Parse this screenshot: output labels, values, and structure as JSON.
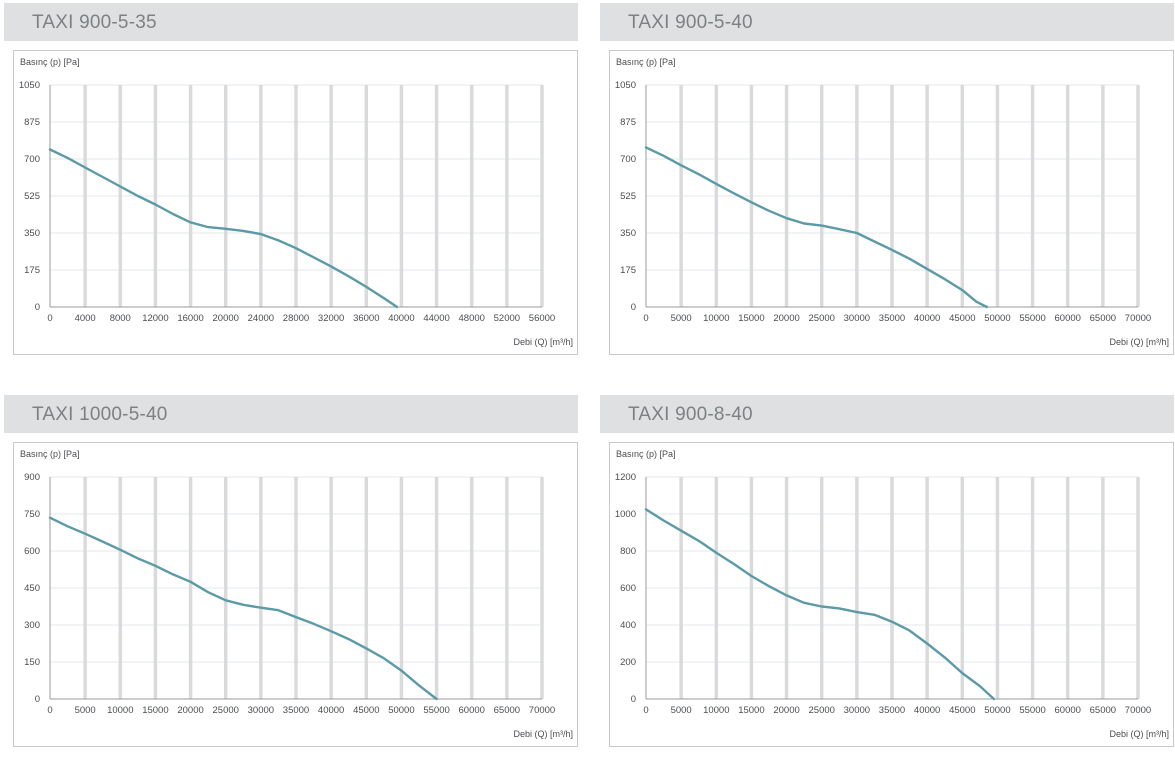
{
  "chart_data": [
    {
      "type": "line",
      "title": "TAXI 900-5-35",
      "ylabel": "Basınç (p) [Pa]",
      "xlabel": "Debi (Q) [m³/h]",
      "ylim": [
        0,
        1050
      ],
      "xlim": [
        0,
        56000
      ],
      "yticks": [
        0,
        175,
        350,
        525,
        700,
        875,
        1050
      ],
      "xticks": [
        0,
        4000,
        8000,
        12000,
        16000,
        20000,
        24000,
        28000,
        32000,
        36000,
        40000,
        44000,
        48000,
        52000,
        56000
      ],
      "grid": true,
      "line_color": "#5b9aa6",
      "series": [
        {
          "x": [
            0,
            2000,
            4000,
            6000,
            8000,
            10000,
            12000,
            14000,
            16000,
            18000,
            20000,
            22000,
            24000,
            26000,
            28000,
            30000,
            32000,
            34000,
            36000,
            38000,
            39500
          ],
          "y": [
            745,
            705,
            660,
            615,
            570,
            525,
            485,
            440,
            400,
            378,
            370,
            360,
            345,
            315,
            278,
            235,
            192,
            145,
            95,
            42,
            0
          ]
        }
      ]
    },
    {
      "type": "line",
      "title": "TAXI 900-5-40",
      "ylabel": "Basınç (p) [Pa]",
      "xlabel": "Debi (Q) [m³/h]",
      "ylim": [
        0,
        1050
      ],
      "xlim": [
        0,
        70000
      ],
      "yticks": [
        0,
        175,
        350,
        525,
        700,
        875,
        1050
      ],
      "xticks": [
        0,
        5000,
        10000,
        15000,
        20000,
        25000,
        30000,
        35000,
        40000,
        45000,
        50000,
        55000,
        60000,
        65000,
        70000
      ],
      "grid": true,
      "line_color": "#5b9aa6",
      "series": [
        {
          "x": [
            0,
            2500,
            5000,
            7500,
            10000,
            12500,
            15000,
            17500,
            20000,
            22500,
            25000,
            27500,
            30000,
            32500,
            35000,
            37500,
            40000,
            42500,
            45000,
            47000,
            48500
          ],
          "y": [
            755,
            715,
            670,
            628,
            582,
            538,
            495,
            455,
            420,
            395,
            385,
            368,
            350,
            310,
            270,
            228,
            180,
            132,
            80,
            25,
            0
          ]
        }
      ]
    },
    {
      "type": "line",
      "title": "TAXI 1000-5-40",
      "ylabel": "Basınç (p) [Pa]",
      "xlabel": "Debi (Q) [m³/h]",
      "ylim": [
        0,
        900
      ],
      "xlim": [
        0,
        70000
      ],
      "yticks": [
        0,
        150,
        300,
        450,
        600,
        750,
        900
      ],
      "xticks": [
        0,
        5000,
        10000,
        15000,
        20000,
        25000,
        30000,
        35000,
        40000,
        45000,
        50000,
        55000,
        60000,
        65000,
        70000
      ],
      "grid": true,
      "line_color": "#5b9aa6",
      "series": [
        {
          "x": [
            0,
            2500,
            5000,
            7500,
            10000,
            12500,
            15000,
            17500,
            20000,
            22500,
            25000,
            27500,
            30000,
            32500,
            35000,
            37500,
            40000,
            42500,
            45000,
            47500,
            50000,
            52500,
            55000
          ],
          "y": [
            735,
            700,
            670,
            638,
            605,
            570,
            540,
            505,
            475,
            433,
            400,
            382,
            370,
            360,
            332,
            305,
            275,
            243,
            205,
            165,
            115,
            55,
            0
          ]
        }
      ]
    },
    {
      "type": "line",
      "title": "TAXI 900-8-40",
      "ylabel": "Basınç (p) [Pa]",
      "xlabel": "Debi (Q) [m³/h]",
      "ylim": [
        0,
        1200
      ],
      "xlim": [
        0,
        70000
      ],
      "yticks": [
        0,
        200,
        400,
        600,
        800,
        1000,
        1200
      ],
      "xticks": [
        0,
        5000,
        10000,
        15000,
        20000,
        25000,
        30000,
        35000,
        40000,
        45000,
        50000,
        55000,
        60000,
        65000,
        70000
      ],
      "grid": true,
      "line_color": "#5b9aa6",
      "series": [
        {
          "x": [
            0,
            2500,
            5000,
            7500,
            10000,
            12500,
            15000,
            17500,
            20000,
            22500,
            25000,
            27500,
            30000,
            32500,
            35000,
            37500,
            40000,
            42500,
            45000,
            47500,
            49500
          ],
          "y": [
            1025,
            965,
            910,
            855,
            790,
            730,
            665,
            610,
            560,
            520,
            500,
            490,
            470,
            455,
            418,
            370,
            300,
            225,
            140,
            70,
            0
          ]
        }
      ]
    }
  ]
}
